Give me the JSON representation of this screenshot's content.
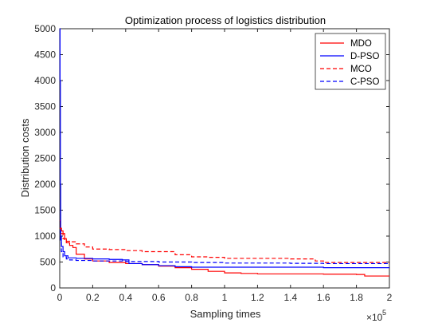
{
  "chart_data": {
    "type": "line",
    "title": "Optimization process of logistics distribution",
    "xlabel": "Sampling times",
    "ylabel": "Distribution costs",
    "x_exponent": "5",
    "xlim": [
      0,
      2
    ],
    "ylim": [
      0,
      5000
    ],
    "xticks": [
      "0",
      "0.2",
      "0.4",
      "0.6",
      "0.8",
      "1",
      "1.2",
      "1.4",
      "1.6",
      "1.8",
      "2"
    ],
    "yticks": [
      "0",
      "500",
      "1000",
      "1500",
      "2000",
      "2500",
      "3000",
      "3500",
      "4000",
      "4500",
      "5000"
    ],
    "legend_position": "top-right",
    "series": [
      {
        "name": "MDO",
        "color": "#ff0000",
        "style": "solid",
        "points": [
          [
            0,
            1300
          ],
          [
            0.005,
            1150
          ],
          [
            0.01,
            1100
          ],
          [
            0.02,
            1050
          ],
          [
            0.03,
            950
          ],
          [
            0.04,
            870
          ],
          [
            0.06,
            820
          ],
          [
            0.08,
            780
          ],
          [
            0.1,
            650
          ],
          [
            0.15,
            560
          ],
          [
            0.2,
            520
          ],
          [
            0.3,
            490
          ],
          [
            0.4,
            470
          ],
          [
            0.5,
            450
          ],
          [
            0.6,
            420
          ],
          [
            0.7,
            390
          ],
          [
            0.8,
            360
          ],
          [
            0.9,
            320
          ],
          [
            1.0,
            290
          ],
          [
            1.1,
            280
          ],
          [
            1.2,
            270
          ],
          [
            1.4,
            270
          ],
          [
            1.6,
            265
          ],
          [
            1.8,
            260
          ],
          [
            1.85,
            230
          ],
          [
            2.0,
            230
          ]
        ]
      },
      {
        "name": "D-PSO",
        "color": "#0000ff",
        "style": "solid",
        "points": [
          [
            0,
            5000
          ],
          [
            0.002,
            4000
          ],
          [
            0.004,
            2000
          ],
          [
            0.006,
            1000
          ],
          [
            0.01,
            800
          ],
          [
            0.02,
            700
          ],
          [
            0.03,
            620
          ],
          [
            0.05,
            580
          ],
          [
            0.1,
            570
          ],
          [
            0.2,
            560
          ],
          [
            0.3,
            550
          ],
          [
            0.38,
            540
          ],
          [
            0.42,
            470
          ],
          [
            0.5,
            450
          ],
          [
            0.6,
            430
          ],
          [
            0.7,
            410
          ],
          [
            0.8,
            400
          ],
          [
            0.9,
            400
          ],
          [
            1.0,
            400
          ],
          [
            1.2,
            400
          ],
          [
            1.4,
            400
          ],
          [
            1.6,
            390
          ],
          [
            1.8,
            390
          ],
          [
            2.0,
            390
          ]
        ]
      },
      {
        "name": "MCO",
        "color": "#ff0000",
        "style": "dashed",
        "points": [
          [
            0,
            1150
          ],
          [
            0.01,
            1050
          ],
          [
            0.02,
            950
          ],
          [
            0.03,
            900
          ],
          [
            0.06,
            890
          ],
          [
            0.1,
            850
          ],
          [
            0.15,
            790
          ],
          [
            0.2,
            750
          ],
          [
            0.3,
            740
          ],
          [
            0.4,
            720
          ],
          [
            0.5,
            700
          ],
          [
            0.7,
            640
          ],
          [
            0.8,
            600
          ],
          [
            0.9,
            590
          ],
          [
            1.0,
            570
          ],
          [
            1.2,
            570
          ],
          [
            1.4,
            560
          ],
          [
            1.5,
            560
          ],
          [
            1.55,
            520
          ],
          [
            1.6,
            490
          ],
          [
            1.8,
            490
          ],
          [
            2.0,
            490
          ]
        ]
      },
      {
        "name": "C-PSO",
        "color": "#0000ff",
        "style": "dashed",
        "points": [
          [
            0,
            1100
          ],
          [
            0.005,
            900
          ],
          [
            0.01,
            700
          ],
          [
            0.02,
            600
          ],
          [
            0.04,
            560
          ],
          [
            0.06,
            540
          ],
          [
            0.1,
            530
          ],
          [
            0.2,
            520
          ],
          [
            0.3,
            520
          ],
          [
            0.4,
            510
          ],
          [
            0.6,
            500
          ],
          [
            0.8,
            490
          ],
          [
            1.0,
            480
          ],
          [
            1.2,
            480
          ],
          [
            1.4,
            475
          ],
          [
            1.6,
            470
          ],
          [
            1.8,
            470
          ],
          [
            2.0,
            470
          ]
        ]
      }
    ]
  }
}
